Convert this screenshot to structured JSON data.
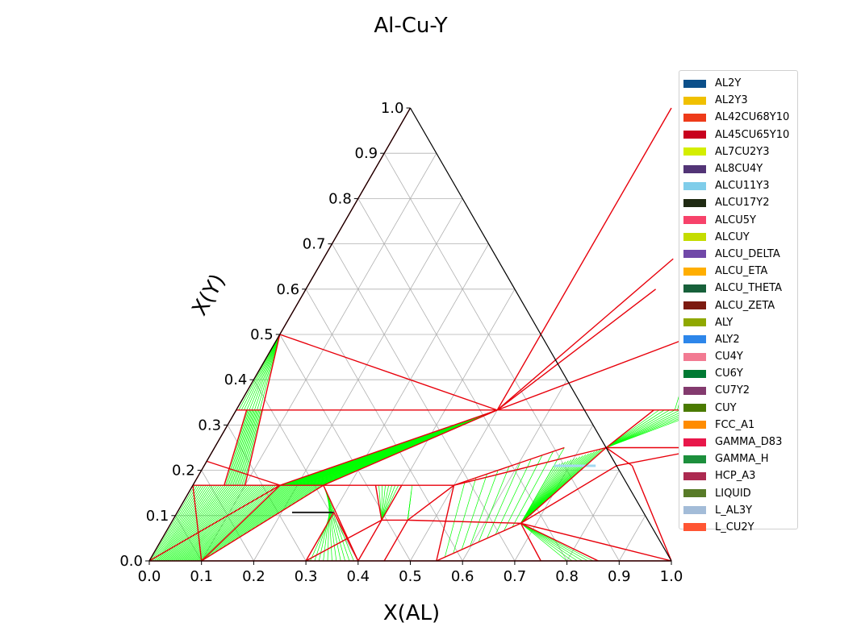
{
  "chart_data": {
    "type": "ternary",
    "title": "Al-Cu-Y",
    "xlabel": "X(AL)",
    "ylabel": "X(Y)",
    "xlim": [
      0,
      1
    ],
    "ylim": [
      0,
      1
    ],
    "x_ticks": [
      "0.0",
      "0.1",
      "0.2",
      "0.3",
      "0.4",
      "0.5",
      "0.6",
      "0.7",
      "0.8",
      "0.9",
      "1.0"
    ],
    "y_ticks": [
      "0.0",
      "0.1",
      "0.2",
      "0.3",
      "0.4",
      "0.5",
      "0.6",
      "0.7",
      "0.8",
      "0.9",
      "1.0"
    ],
    "grid": true,
    "legend_position": "right",
    "phase_colors": {
      "boundary": "#e8000b",
      "tieline": "#00ff00",
      "alcu17y2_tieline": "#202020",
      "grid": "#b0b0b0"
    },
    "series": [
      {
        "name": "AL2Y",
        "color": "#0b4f8a"
      },
      {
        "name": "AL2Y3",
        "color": "#f0c000"
      },
      {
        "name": "AL42CU68Y10",
        "color": "#ee3b1a"
      },
      {
        "name": "AL45CU65Y10",
        "color": "#c8001e"
      },
      {
        "name": "AL7CU2Y3",
        "color": "#d4ee00"
      },
      {
        "name": "AL8CU4Y",
        "color": "#523476"
      },
      {
        "name": "ALCU11Y3",
        "color": "#7fcdea"
      },
      {
        "name": "ALCU17Y2",
        "color": "#1f2a12"
      },
      {
        "name": "ALCU5Y",
        "color": "#f7426a"
      },
      {
        "name": "ALCUY",
        "color": "#c4dc00"
      },
      {
        "name": "ALCU_DELTA",
        "color": "#7048a8"
      },
      {
        "name": "ALCU_ETA",
        "color": "#ffae00"
      },
      {
        "name": "ALCU_THETA",
        "color": "#17603a"
      },
      {
        "name": "ALCU_ZETA",
        "color": "#7c1a10"
      },
      {
        "name": "ALY",
        "color": "#8fa800"
      },
      {
        "name": "ALY2",
        "color": "#2d86ea"
      },
      {
        "name": "CU4Y",
        "color": "#f27a92"
      },
      {
        "name": "CU6Y",
        "color": "#007a33"
      },
      {
        "name": "CU7Y2",
        "color": "#833a6e"
      },
      {
        "name": "CUY",
        "color": "#4a7a00"
      },
      {
        "name": "FCC_A1",
        "color": "#ff8c00"
      },
      {
        "name": "GAMMA_D83",
        "color": "#e8174a"
      },
      {
        "name": "GAMMA_H",
        "color": "#1c8f3c"
      },
      {
        "name": "HCP_A3",
        "color": "#ac2a50"
      },
      {
        "name": "LIQUID",
        "color": "#587b28"
      },
      {
        "name": "L_AL3Y",
        "color": "#a3bcd8"
      },
      {
        "name": "L_CU2Y",
        "color": "#ff5533"
      }
    ],
    "boundary_segments": [
      [
        [
          0.0,
          1.0
        ],
        [
          0.0,
          0.0
        ]
      ],
      [
        [
          0.5,
          1.0
        ],
        [
          0.5,
          0.333
        ]
      ],
      [
        [
          0.0,
          0.333
        ],
        [
          1.0,
          0.333
        ]
      ],
      [
        [
          0.0,
          0.5
        ],
        [
          0.5,
          0.333
        ]
      ],
      [
        [
          0.0,
          0.5
        ],
        [
          0.05,
          0.333
        ]
      ],
      [
        [
          0.05,
          0.333
        ],
        [
          0.1,
          0.167
        ]
      ],
      [
        [
          0.02,
          0.333
        ],
        [
          0.06,
          0.167
        ]
      ],
      [
        [
          0.5,
          0.333
        ],
        [
          0.167,
          0.167
        ]
      ],
      [
        [
          0.5,
          0.333
        ],
        [
          0.25,
          0.167
        ]
      ],
      [
        [
          0.5,
          0.333
        ],
        [
          0.8,
          0.5
        ]
      ],
      [
        [
          0.5,
          0.333
        ],
        [
          0.67,
          0.6
        ]
      ],
      [
        [
          0.5,
          0.333
        ],
        [
          0.67,
          0.667
        ]
      ],
      [
        [
          0.0,
          0.167
        ],
        [
          0.5,
          0.167
        ]
      ],
      [
        [
          0.0,
          0.22
        ],
        [
          0.167,
          0.167
        ]
      ],
      [
        [
          0.0,
          0.167
        ],
        [
          0.1,
          0.0
        ]
      ],
      [
        [
          0.167,
          0.167
        ],
        [
          0.0,
          0.0
        ]
      ],
      [
        [
          0.167,
          0.167
        ],
        [
          0.1,
          0.0
        ]
      ],
      [
        [
          0.25,
          0.167
        ],
        [
          0.1,
          0.0
        ]
      ],
      [
        [
          0.25,
          0.167
        ],
        [
          0.4,
          0.0
        ]
      ],
      [
        [
          0.4,
          0.0
        ],
        [
          0.3,
          0.107
        ]
      ],
      [
        [
          0.3,
          0.107
        ],
        [
          0.3,
          0.0
        ]
      ],
      [
        [
          0.35,
          0.167
        ],
        [
          0.4,
          0.09
        ]
      ],
      [
        [
          0.4,
          0.167
        ],
        [
          0.4,
          0.09
        ]
      ],
      [
        [
          0.4,
          0.09
        ],
        [
          0.45,
          0.09
        ]
      ],
      [
        [
          0.45,
          0.09
        ],
        [
          0.5,
          0.167
        ]
      ],
      [
        [
          0.45,
          0.09
        ],
        [
          0.45,
          0.0
        ]
      ],
      [
        [
          0.4,
          0.09
        ],
        [
          0.3,
          0.0
        ]
      ],
      [
        [
          0.4,
          0.09
        ],
        [
          0.4,
          0.0
        ]
      ],
      [
        [
          0.5,
          0.167
        ],
        [
          0.55,
          0.0
        ]
      ],
      [
        [
          0.5,
          0.167
        ],
        [
          0.67,
          0.25
        ]
      ],
      [
        [
          0.5,
          0.167
        ],
        [
          0.75,
          0.25
        ]
      ],
      [
        [
          0.55,
          0.0
        ],
        [
          0.67,
          0.083
        ]
      ],
      [
        [
          0.45,
          0.09
        ],
        [
          0.67,
          0.083
        ]
      ],
      [
        [
          0.67,
          0.083
        ],
        [
          0.75,
          0.25
        ]
      ],
      [
        [
          0.67,
          0.083
        ],
        [
          0.79,
          0.21
        ]
      ],
      [
        [
          0.67,
          0.083
        ],
        [
          0.75,
          0.0
        ]
      ],
      [
        [
          0.67,
          0.083
        ],
        [
          0.86,
          0.0
        ]
      ],
      [
        [
          0.67,
          0.083
        ],
        [
          1.0,
          0.0
        ]
      ],
      [
        [
          0.75,
          0.25
        ],
        [
          0.8,
          0.333
        ]
      ],
      [
        [
          0.75,
          0.25
        ],
        [
          0.95,
          0.25
        ]
      ],
      [
        [
          0.75,
          0.25
        ],
        [
          0.82,
          0.21
        ]
      ],
      [
        [
          0.82,
          0.21
        ],
        [
          1.0,
          0.0
        ]
      ],
      [
        [
          0.95,
          0.25
        ],
        [
          0.79,
          0.21
        ]
      ],
      [
        [
          0.8,
          0.5
        ],
        [
          0.9,
          0.333
        ]
      ],
      [
        [
          0.0,
          0.0
        ],
        [
          1.0,
          0.0
        ]
      ]
    ]
  }
}
